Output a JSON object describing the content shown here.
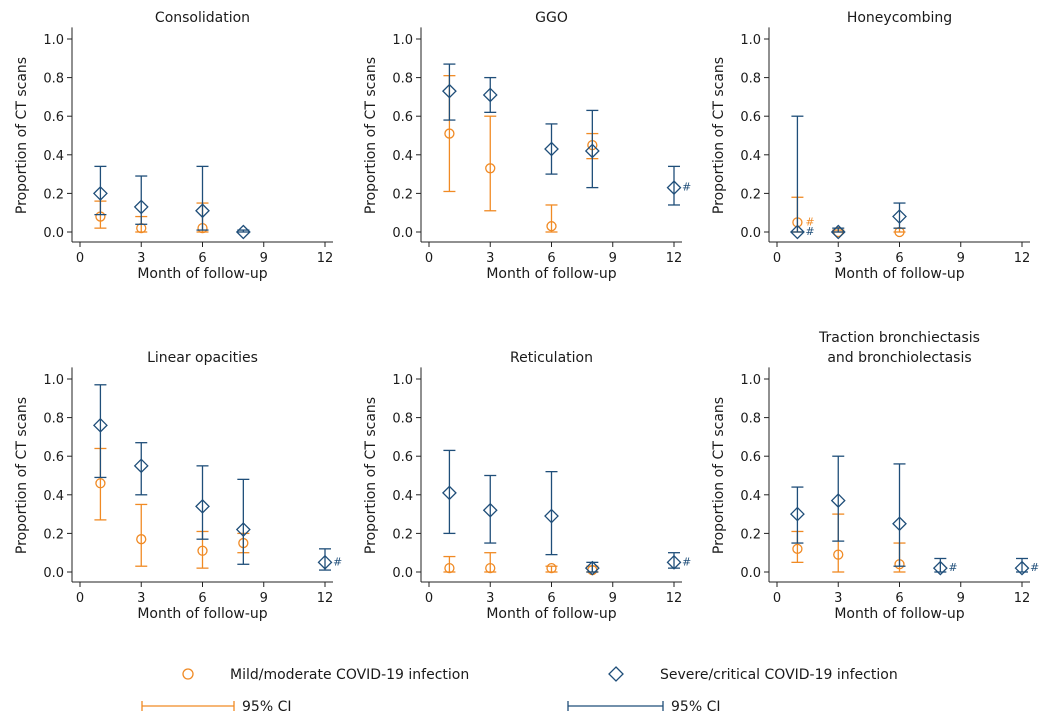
{
  "colors": {
    "mild": "#f08a24",
    "severe": "#1f4e79"
  },
  "legend": {
    "mild_label": "Mild/moderate COVID-19 infection",
    "severe_label": "Severe/critical COVID-19 infection",
    "ci_label_mild": "95% CI",
    "ci_label_severe": "95% CI"
  },
  "chart_data": [
    {
      "type": "scatter",
      "title": [
        "Consolidation"
      ],
      "xlabel": "Month of follow-up",
      "ylabel": "Proportion of CT scans",
      "xlim": [
        0,
        12
      ],
      "ylim": [
        0,
        1.0
      ],
      "xticks": [
        0,
        3,
        6,
        9,
        12
      ],
      "yticks": [
        "0.0",
        "0.2",
        "0.4",
        "0.6",
        "0.8",
        "1.0"
      ],
      "series": [
        {
          "name": "Mild/moderate COVID-19 infection",
          "marker": "circle",
          "points": [
            {
              "x": 1,
              "y": 0.08,
              "lo": 0.02,
              "hi": 0.16
            },
            {
              "x": 3,
              "y": 0.02,
              "lo": 0.0,
              "hi": 0.08
            },
            {
              "x": 6,
              "y": 0.02,
              "lo": 0.0,
              "hi": 0.15
            }
          ]
        },
        {
          "name": "Severe/critical COVID-19 infection",
          "marker": "diamond",
          "points": [
            {
              "x": 1,
              "y": 0.2,
              "lo": 0.09,
              "hi": 0.34
            },
            {
              "x": 3,
              "y": 0.13,
              "lo": 0.04,
              "hi": 0.29
            },
            {
              "x": 6,
              "y": 0.11,
              "lo": 0.01,
              "hi": 0.34
            },
            {
              "x": 8,
              "y": 0.0,
              "lo": 0.0,
              "hi": 0.01
            }
          ]
        }
      ]
    },
    {
      "type": "scatter",
      "title": [
        "GGO"
      ],
      "xlabel": "Month of follow-up",
      "ylabel": "Proportion of CT scans",
      "xlim": [
        0,
        12
      ],
      "ylim": [
        0,
        1.0
      ],
      "xticks": [
        0,
        3,
        6,
        9,
        12
      ],
      "yticks": [
        "0.0",
        "0.2",
        "0.4",
        "0.6",
        "0.8",
        "1.0"
      ],
      "series": [
        {
          "name": "Mild/moderate COVID-19 infection",
          "marker": "circle",
          "points": [
            {
              "x": 1,
              "y": 0.51,
              "lo": 0.21,
              "hi": 0.81
            },
            {
              "x": 3,
              "y": 0.33,
              "lo": 0.11,
              "hi": 0.6
            },
            {
              "x": 6,
              "y": 0.03,
              "lo": 0.0,
              "hi": 0.14
            },
            {
              "x": 8,
              "y": 0.45,
              "lo": 0.38,
              "hi": 0.51
            }
          ]
        },
        {
          "name": "Severe/critical COVID-19 infection",
          "marker": "diamond",
          "points": [
            {
              "x": 1,
              "y": 0.73,
              "lo": 0.58,
              "hi": 0.87
            },
            {
              "x": 3,
              "y": 0.71,
              "lo": 0.62,
              "hi": 0.8
            },
            {
              "x": 6,
              "y": 0.43,
              "lo": 0.3,
              "hi": 0.56
            },
            {
              "x": 8,
              "y": 0.42,
              "lo": 0.23,
              "hi": 0.63
            },
            {
              "x": 12,
              "y": 0.23,
              "lo": 0.14,
              "hi": 0.34,
              "note": "#"
            }
          ]
        }
      ]
    },
    {
      "type": "scatter",
      "title": [
        "Honeycombing"
      ],
      "xlabel": "Month of follow-up",
      "ylabel": "Proportion of CT scans",
      "xlim": [
        0,
        12
      ],
      "ylim": [
        0,
        1.0
      ],
      "xticks": [
        0,
        3,
        6,
        9,
        12
      ],
      "yticks": [
        "0.0",
        "0.2",
        "0.4",
        "0.6",
        "0.8",
        "1.0"
      ],
      "series": [
        {
          "name": "Mild/moderate COVID-19 infection",
          "marker": "circle",
          "points": [
            {
              "x": 1,
              "y": 0.05,
              "lo": 0.0,
              "hi": 0.18,
              "note": "#"
            },
            {
              "x": 3,
              "y": 0.0,
              "lo": 0.0,
              "hi": 0.01
            },
            {
              "x": 6,
              "y": 0.0,
              "lo": 0.0,
              "hi": 0.02
            }
          ]
        },
        {
          "name": "Severe/critical COVID-19 infection",
          "marker": "diamond",
          "points": [
            {
              "x": 1,
              "y": 0.0,
              "lo": 0.0,
              "hi": 0.6,
              "note": "#"
            },
            {
              "x": 3,
              "y": 0.0,
              "lo": 0.0,
              "hi": 0.02
            },
            {
              "x": 6,
              "y": 0.08,
              "lo": 0.02,
              "hi": 0.15
            }
          ]
        }
      ]
    },
    {
      "type": "scatter",
      "title": [
        "Linear opacities"
      ],
      "xlabel": "Month of follow-up",
      "ylabel": "Proportion of CT scans",
      "xlim": [
        0,
        12
      ],
      "ylim": [
        0,
        1.0
      ],
      "xticks": [
        0,
        3,
        6,
        9,
        12
      ],
      "yticks": [
        "0.0",
        "0.2",
        "0.4",
        "0.6",
        "0.8",
        "1.0"
      ],
      "series": [
        {
          "name": "Mild/moderate COVID-19 infection",
          "marker": "circle",
          "points": [
            {
              "x": 1,
              "y": 0.46,
              "lo": 0.27,
              "hi": 0.64
            },
            {
              "x": 3,
              "y": 0.17,
              "lo": 0.03,
              "hi": 0.35
            },
            {
              "x": 6,
              "y": 0.11,
              "lo": 0.02,
              "hi": 0.21
            },
            {
              "x": 8,
              "y": 0.15,
              "lo": 0.1,
              "hi": 0.2
            }
          ]
        },
        {
          "name": "Severe/critical COVID-19 infection",
          "marker": "diamond",
          "points": [
            {
              "x": 1,
              "y": 0.76,
              "lo": 0.49,
              "hi": 0.97
            },
            {
              "x": 3,
              "y": 0.55,
              "lo": 0.4,
              "hi": 0.67
            },
            {
              "x": 6,
              "y": 0.34,
              "lo": 0.17,
              "hi": 0.55
            },
            {
              "x": 8,
              "y": 0.22,
              "lo": 0.04,
              "hi": 0.48
            },
            {
              "x": 12,
              "y": 0.05,
              "lo": 0.01,
              "hi": 0.12,
              "note": "#"
            }
          ]
        }
      ]
    },
    {
      "type": "scatter",
      "title": [
        "Reticulation"
      ],
      "xlabel": "Month of follow-up",
      "ylabel": "Proportion of CT scans",
      "xlim": [
        0,
        12
      ],
      "ylim": [
        0,
        1.0
      ],
      "xticks": [
        0,
        3,
        6,
        9,
        12
      ],
      "yticks": [
        "0.0",
        "0.2",
        "0.4",
        "0.6",
        "0.8",
        "1.0"
      ],
      "series": [
        {
          "name": "Mild/moderate COVID-19 infection",
          "marker": "circle",
          "points": [
            {
              "x": 1,
              "y": 0.02,
              "lo": 0.0,
              "hi": 0.08
            },
            {
              "x": 3,
              "y": 0.02,
              "lo": 0.0,
              "hi": 0.1
            },
            {
              "x": 6,
              "y": 0.02,
              "lo": 0.0,
              "hi": 0.03
            },
            {
              "x": 8,
              "y": 0.01,
              "lo": 0.0,
              "hi": 0.03
            }
          ]
        },
        {
          "name": "Severe/critical COVID-19 infection",
          "marker": "diamond",
          "points": [
            {
              "x": 1,
              "y": 0.41,
              "lo": 0.2,
              "hi": 0.63
            },
            {
              "x": 3,
              "y": 0.32,
              "lo": 0.15,
              "hi": 0.5
            },
            {
              "x": 6,
              "y": 0.29,
              "lo": 0.09,
              "hi": 0.52
            },
            {
              "x": 8,
              "y": 0.02,
              "lo": 0.0,
              "hi": 0.05
            },
            {
              "x": 12,
              "y": 0.05,
              "lo": 0.02,
              "hi": 0.1,
              "note": "#"
            }
          ]
        }
      ]
    },
    {
      "type": "scatter",
      "title": [
        "Traction bronchiectasis",
        "and bronchiolectasis"
      ],
      "xlabel": "Month of follow-up",
      "ylabel": "Proportion of CT scans",
      "xlim": [
        0,
        12
      ],
      "ylim": [
        0,
        1.0
      ],
      "xticks": [
        0,
        3,
        6,
        9,
        12
      ],
      "yticks": [
        "0.0",
        "0.2",
        "0.4",
        "0.6",
        "0.8",
        "1.0"
      ],
      "series": [
        {
          "name": "Mild/moderate COVID-19 infection",
          "marker": "circle",
          "points": [
            {
              "x": 1,
              "y": 0.12,
              "lo": 0.05,
              "hi": 0.21
            },
            {
              "x": 3,
              "y": 0.09,
              "lo": 0.0,
              "hi": 0.3
            },
            {
              "x": 6,
              "y": 0.04,
              "lo": 0.0,
              "hi": 0.15
            }
          ]
        },
        {
          "name": "Severe/critical COVID-19 infection",
          "marker": "diamond",
          "points": [
            {
              "x": 1,
              "y": 0.3,
              "lo": 0.15,
              "hi": 0.44
            },
            {
              "x": 3,
              "y": 0.37,
              "lo": 0.16,
              "hi": 0.6
            },
            {
              "x": 6,
              "y": 0.25,
              "lo": 0.03,
              "hi": 0.56
            },
            {
              "x": 8,
              "y": 0.02,
              "lo": 0.0,
              "hi": 0.07,
              "note": "#"
            },
            {
              "x": 12,
              "y": 0.02,
              "lo": 0.0,
              "hi": 0.07,
              "note": "#"
            }
          ]
        }
      ]
    }
  ]
}
